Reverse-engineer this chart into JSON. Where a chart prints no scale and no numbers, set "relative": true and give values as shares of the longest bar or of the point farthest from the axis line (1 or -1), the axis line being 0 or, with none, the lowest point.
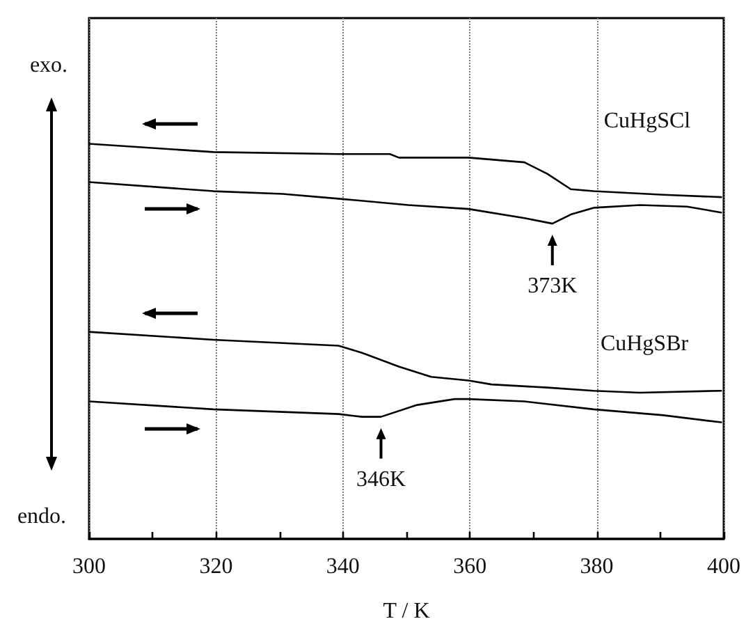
{
  "chart_data": {
    "type": "line",
    "relative": true,
    "xlabel": "T / K",
    "xlim": [
      300,
      400
    ],
    "xticks": [
      300,
      {
        "value": 310,
        "label": null
      },
      320,
      {
        "value": 330,
        "label": null
      },
      340,
      {
        "value": 350,
        "label": null
      },
      360,
      {
        "value": 370,
        "label": null
      },
      380,
      {
        "value": 390,
        "label": null
      },
      400
    ],
    "grid": "x",
    "tick_labels": "x",
    "marker": "none",
    "line_style": "solid",
    "series": [
      {
        "color": "#000000",
        "x": [
          300,
          319.6,
          339.3,
          347.4,
          348.8,
          359.8,
          368.6,
          372.2,
          375.9,
          379.5,
          390.5,
          399.6
        ],
        "values": [
          1.0,
          0.979,
          0.974,
          0.974,
          0.965,
          0.965,
          0.953,
          0.924,
          0.885,
          0.88,
          0.871,
          0.865
        ]
      },
      {
        "color": "#000000",
        "x": [
          300,
          319.6,
          330.5,
          339.3,
          350.3,
          359.8,
          368.6,
          373,
          375.9,
          379.5,
          386.8,
          394.2,
          399.6
        ],
        "values": [
          0.903,
          0.88,
          0.873,
          0.861,
          0.845,
          0.835,
          0.812,
          0.798,
          0.821,
          0.838,
          0.845,
          0.841,
          0.826
        ]
      },
      {
        "color": "#000000",
        "x": [
          300,
          319.6,
          339.3,
          343,
          348.8,
          353.9,
          359.8,
          363.4,
          372.2,
          379.5,
          386.8,
          399.6
        ],
        "values": [
          0.524,
          0.504,
          0.489,
          0.471,
          0.436,
          0.41,
          0.401,
          0.391,
          0.383,
          0.375,
          0.37,
          0.375
        ]
      },
      {
        "color": "#000000",
        "x": [
          300,
          319.6,
          339.3,
          343,
          346,
          351.7,
          357.6,
          359.8,
          368.6,
          379.5,
          390.5,
          399.6
        ],
        "values": [
          0.348,
          0.328,
          0.316,
          0.309,
          0.309,
          0.339,
          0.354,
          0.354,
          0.348,
          0.328,
          0.313,
          0.295
        ]
      }
    ],
    "annotations": [
      "CuHgSCl",
      "CuHgSBr",
      {
        "text": "373K",
        "x": 373,
        "y": 0.798
      },
      {
        "text": "346K",
        "x": 346,
        "y": 0.309
      },
      "exo.",
      "endo."
    ]
  }
}
